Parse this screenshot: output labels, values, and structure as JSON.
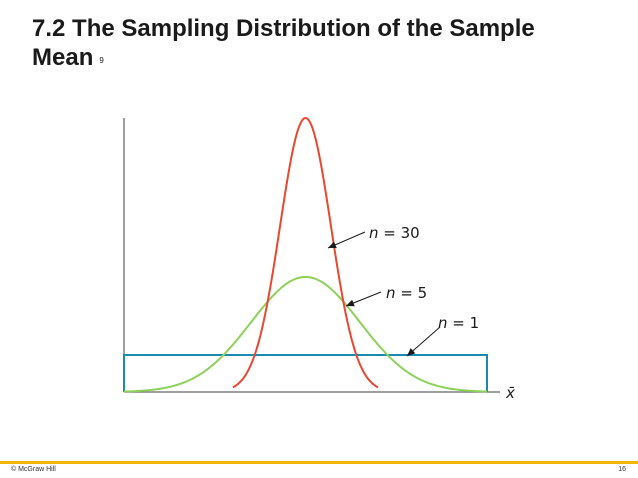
{
  "slide": {
    "title": "7.2 The Sampling Distribution of the Sample Mean",
    "footnote_marker": "9",
    "footer_left": "© McGraw Hill",
    "page_number": "16"
  },
  "colors": {
    "n30": "#e8482f",
    "n5": "#8dd05a",
    "n1": "#1a8ab0",
    "axes": "#7f7f7f",
    "footer_rule": "#f2b705"
  },
  "chart_data": {
    "type": "line",
    "title": "",
    "xlabel": "x̄",
    "ylabel": "",
    "grid": false,
    "legend": "none",
    "annotations": [
      {
        "series": "n30",
        "var": "n",
        "eq": " = ",
        "value": "30"
      },
      {
        "series": "n5",
        "var": "n",
        "eq": " = ",
        "value": "5"
      },
      {
        "series": "n1",
        "var": "n",
        "eq": " = ",
        "value": "1"
      }
    ],
    "series": [
      {
        "key": "n30",
        "mean": 0.5,
        "sd": 0.07,
        "peak": 1.0,
        "x_min": 0.3,
        "x_max": 0.7
      },
      {
        "key": "n5",
        "mean": 0.5,
        "sd": 0.15,
        "peak": 0.42,
        "x_min": 0.0,
        "x_max": 1.0
      },
      {
        "key": "n1",
        "x_min": 0.0,
        "x_max": 1.0,
        "level": 0.135
      }
    ]
  }
}
